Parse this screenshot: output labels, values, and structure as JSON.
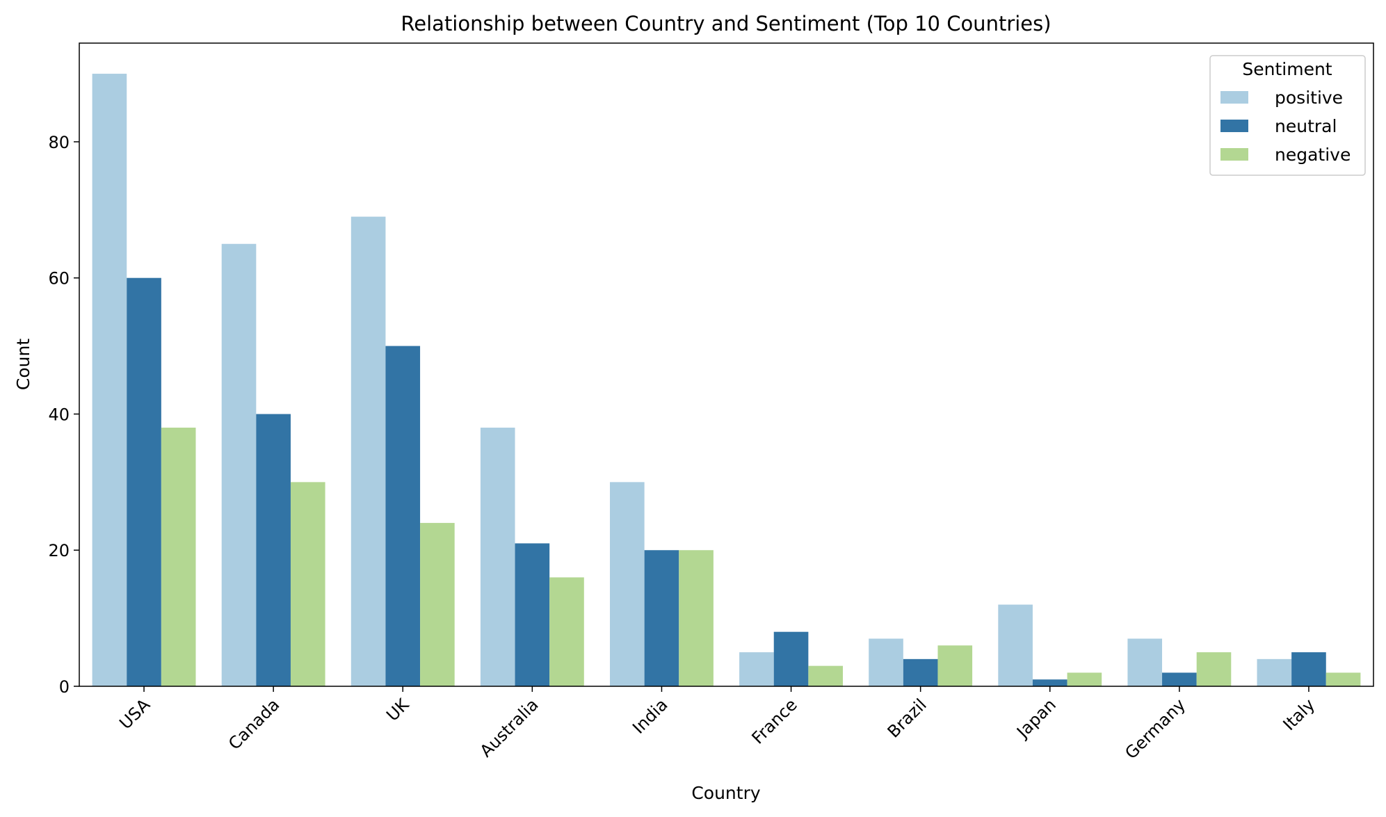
{
  "chart_data": {
    "type": "bar",
    "title": "Relationship between Country and Sentiment (Top 10 Countries)",
    "xlabel": "Country",
    "ylabel": "Count",
    "ylim": [
      0,
      94.5
    ],
    "yticks": [
      0,
      20,
      40,
      60,
      80
    ],
    "categories": [
      "USA",
      "Canada",
      "UK",
      "Australia",
      "India",
      "France",
      "Brazil",
      "Japan",
      "Germany",
      "Italy"
    ],
    "series": [
      {
        "name": "positive",
        "color": "#abcde1",
        "values": [
          90,
          65,
          69,
          38,
          30,
          5,
          7,
          12,
          7,
          4
        ]
      },
      {
        "name": "neutral",
        "color": "#3274a5",
        "values": [
          60,
          40,
          50,
          21,
          20,
          8,
          4,
          1,
          2,
          5
        ]
      },
      {
        "name": "negative",
        "color": "#b3d792",
        "values": [
          38,
          30,
          24,
          16,
          20,
          3,
          6,
          2,
          5,
          2
        ]
      }
    ],
    "legend": {
      "title": "Sentiment",
      "position": "top-right"
    },
    "tick_label_rotation": "45 degrees",
    "grid": false
  }
}
